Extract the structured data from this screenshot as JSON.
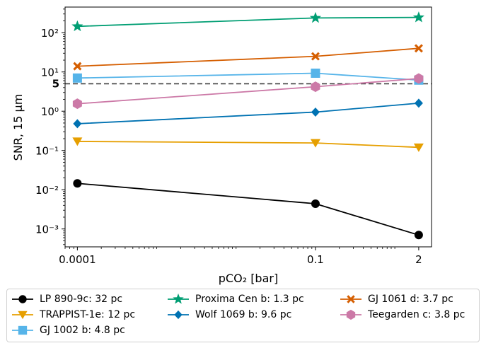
{
  "chart_data": {
    "type": "line",
    "xscale": "log",
    "yscale": "log",
    "xlabel": "pCO₂ [bar]",
    "ylabel": "SNR, 15 μm",
    "x": [
      0.0001,
      0.1,
      2
    ],
    "x_tick_labels": [
      "0.0001",
      "0.1",
      "2"
    ],
    "y_tick_labels": [
      "10⁻³",
      "10⁻²",
      "10⁻¹",
      "10⁰",
      "10¹",
      "10²"
    ],
    "xlim": [
      7e-05,
      2.9
    ],
    "ylim": [
      0.00035,
      450
    ],
    "threshold": {
      "value": 5,
      "label": "5",
      "style": "dashed",
      "color": "#404040"
    },
    "grid": false,
    "legend_position": "below",
    "series": [
      {
        "name": "LP 890-9c: 32 pc",
        "color": "#000000",
        "marker": "circle",
        "values": [
          0.0145,
          0.0044,
          0.0007
        ]
      },
      {
        "name": "TRAPPIST-1e: 12 pc",
        "color": "#E69F00",
        "marker": "triangle-down",
        "values": [
          0.17,
          0.155,
          0.12
        ]
      },
      {
        "name": "GJ 1002 b: 4.8 pc",
        "color": "#56B4E9",
        "marker": "square",
        "values": [
          7.0,
          9.3,
          6.2
        ]
      },
      {
        "name": "Proxima Cen b: 1.3 pc",
        "color": "#009E73",
        "marker": "star",
        "values": [
          145,
          238,
          245
        ]
      },
      {
        "name": "Wolf 1069 b: 9.6 pc",
        "color": "#0072B2",
        "marker": "diamond",
        "values": [
          0.48,
          0.95,
          1.6
        ]
      },
      {
        "name": "GJ 1061 d: 3.7 pc",
        "color": "#D55E00",
        "marker": "x",
        "values": [
          14,
          25,
          40
        ]
      },
      {
        "name": "Teegarden c: 3.8 pc",
        "color": "#CC79A7",
        "marker": "hexagon",
        "values": [
          1.55,
          4.2,
          6.8
        ]
      }
    ]
  }
}
